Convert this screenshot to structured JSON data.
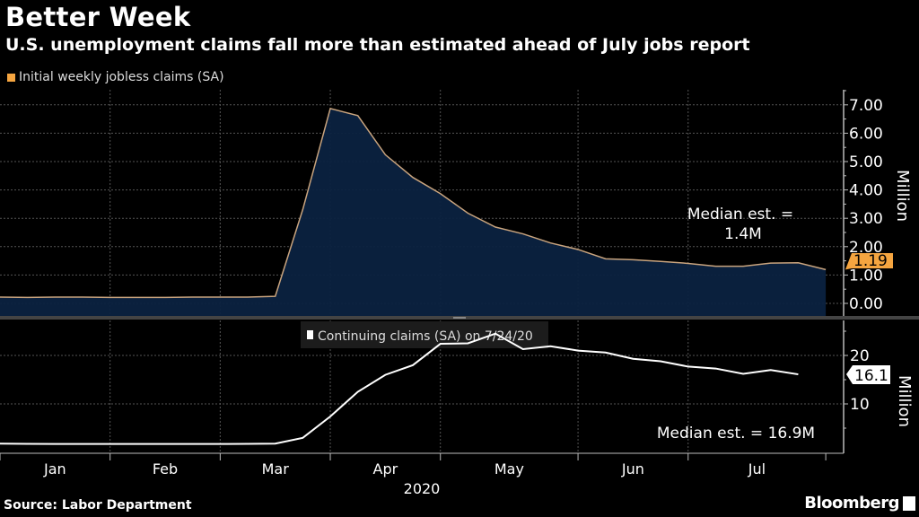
{
  "header": {
    "title": "Better Week",
    "subtitle": "U.S. unemployment claims fall more than estimated ahead of July jobs report"
  },
  "footer": {
    "source": "Source: Labor Department",
    "brand": "Bloomberg"
  },
  "colors": {
    "initial_line": "#c9a47e",
    "initial_fill": "#0b2240",
    "initial_accent": "#f5a540",
    "continuing_line": "#ffffff",
    "grid": "#555555"
  },
  "chart_data": [
    {
      "type": "area",
      "legend": "Initial weekly jobless claims (SA)",
      "ylabel": "Million",
      "ylim": [
        -0.5,
        7.5
      ],
      "yticks": [
        "0.00",
        "1.00",
        "2.00",
        "3.00",
        "4.00",
        "5.00",
        "6.00",
        "7.00"
      ],
      "grid": true,
      "annotation": [
        "Median est. =",
        "1.4M"
      ],
      "last_value_label": "1.19",
      "series": [
        {
          "name": "Initial weekly jobless claims (SA)",
          "values": [
            0.22,
            0.21,
            0.22,
            0.22,
            0.21,
            0.21,
            0.21,
            0.22,
            0.22,
            0.22,
            0.25,
            3.31,
            6.87,
            6.62,
            5.24,
            4.44,
            3.87,
            3.18,
            2.69,
            2.45,
            2.13,
            1.9,
            1.57,
            1.54,
            1.48,
            1.41,
            1.31,
            1.31,
            1.42,
            1.43,
            1.19
          ]
        }
      ]
    },
    {
      "type": "line",
      "legend": "Continuing claims (SA) on 7/24/20",
      "ylabel": "Million",
      "ylim": [
        0,
        27
      ],
      "yticks": [
        "10",
        "20"
      ],
      "grid": true,
      "annotation": "Median est. = 16.9M",
      "last_value_label": "16.1",
      "series": [
        {
          "name": "Continuing claims (SA)",
          "values": [
            1.8,
            1.75,
            1.73,
            1.73,
            1.73,
            1.73,
            1.73,
            1.73,
            1.73,
            1.75,
            1.8,
            3.0,
            7.4,
            12.5,
            16.0,
            18.0,
            22.4,
            22.5,
            24.5,
            21.3,
            21.9,
            21.0,
            20.6,
            19.3,
            18.8,
            17.7,
            17.3,
            16.2,
            17.0,
            16.1
          ]
        }
      ],
      "xaxis": {
        "months": [
          "Jan",
          "Feb",
          "Mar",
          "Apr",
          "May",
          "Jun",
          "Jul"
        ],
        "year": "2020"
      }
    }
  ]
}
